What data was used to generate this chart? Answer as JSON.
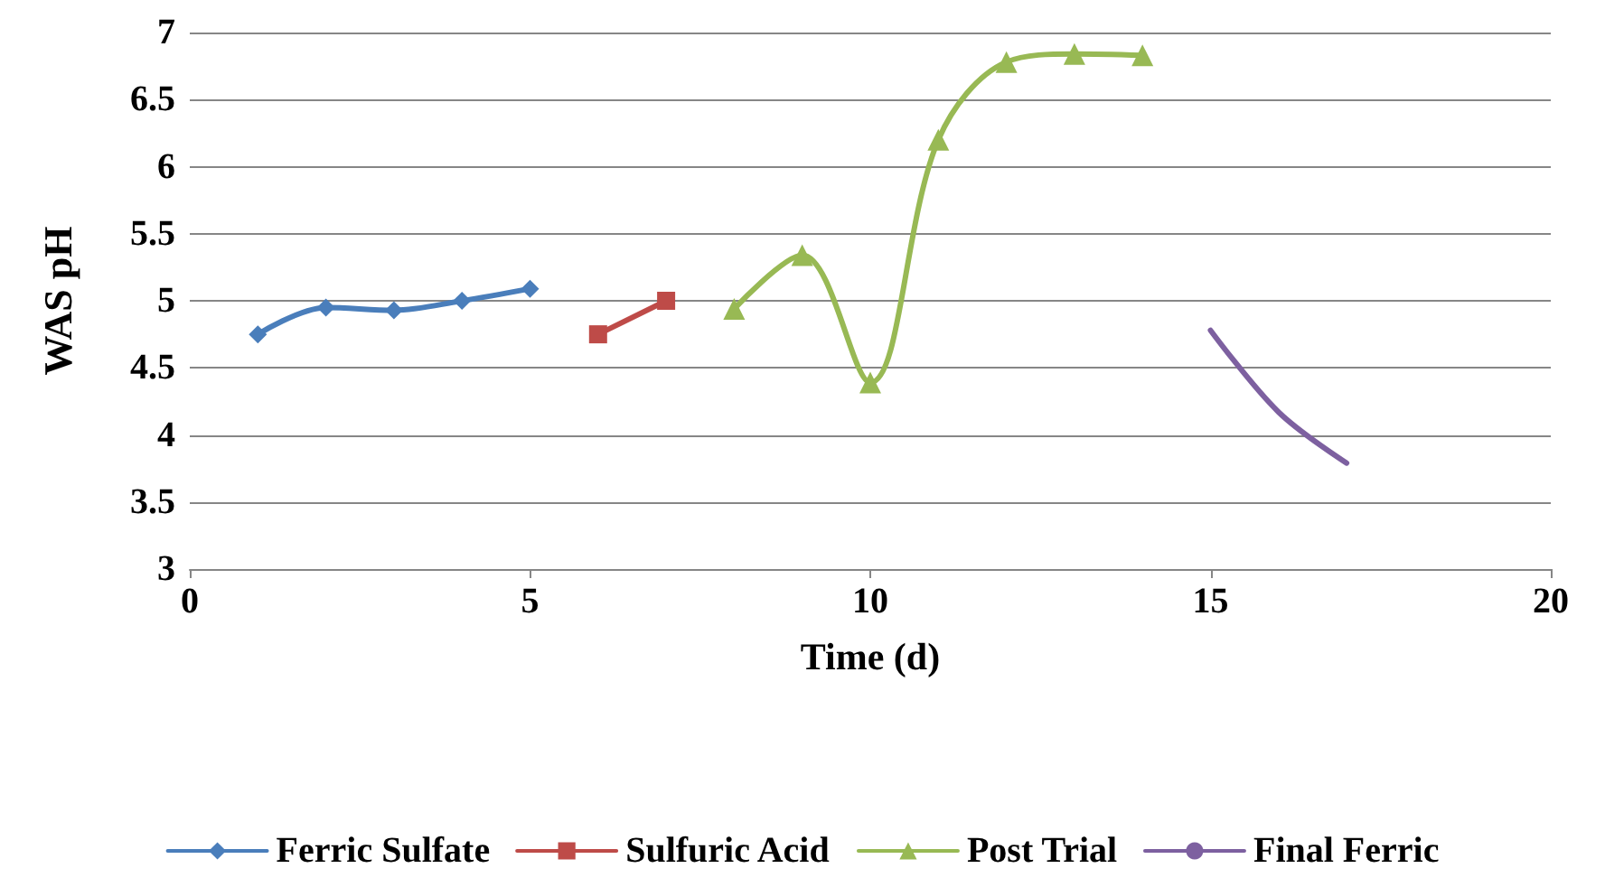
{
  "chart_data": {
    "type": "line",
    "xlabel": "Time (d)",
    "ylabel": "WAS pH",
    "xlim": [
      0,
      20
    ],
    "xticks": [
      0,
      5,
      10,
      15,
      20
    ],
    "ylim": [
      3,
      7
    ],
    "yticks": [
      3,
      3.5,
      4,
      4.5,
      5,
      5.5,
      6,
      6.5,
      7
    ],
    "grid": "y",
    "legend": "bottom",
    "line_style": "solid",
    "series": [
      {
        "name": "Ferric Sulfate",
        "color": "#4a7ebb",
        "marker": "diamond",
        "x": [
          1,
          2,
          3,
          4,
          5
        ],
        "values": [
          4.75,
          4.95,
          4.93,
          5.0,
          5.09
        ]
      },
      {
        "name": "Sulfuric Acid",
        "color": "#be4b48",
        "marker": "square",
        "x": [
          6,
          7
        ],
        "values": [
          4.75,
          5.0
        ]
      },
      {
        "name": "Post Trial",
        "color": "#98b954",
        "marker": "triangle",
        "x": [
          8,
          9,
          10,
          11,
          12,
          13,
          14
        ],
        "values": [
          4.94,
          5.34,
          4.39,
          6.2,
          6.78,
          6.84,
          6.83
        ]
      },
      {
        "name": "Final Ferric",
        "color": "#7d60a0",
        "marker": "none",
        "x": [
          15,
          16,
          17
        ],
        "values": [
          4.78,
          4.17,
          3.79
        ]
      }
    ]
  }
}
